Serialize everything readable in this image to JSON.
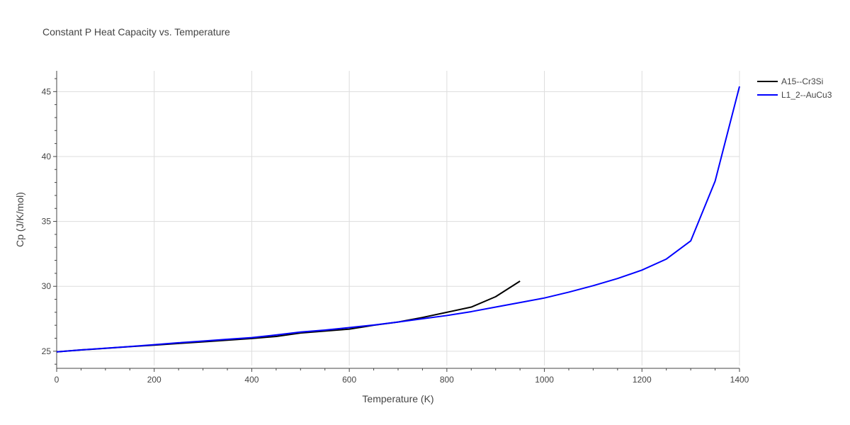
{
  "chart_data": {
    "type": "line",
    "title": "Constant P Heat Capacity vs. Temperature",
    "xlabel": "Temperature (K)",
    "ylabel": "Cp (J/K/mol)",
    "xlim": [
      0,
      1400
    ],
    "ylim": [
      23.9,
      46.6
    ],
    "xticks": [
      0,
      200,
      400,
      600,
      800,
      1000,
      1200,
      1400
    ],
    "yticks": [
      25,
      30,
      35,
      40,
      45
    ],
    "grid": true,
    "legend_position": "top-right",
    "series": [
      {
        "name": "A15--Cr3Si",
        "color": "#000000",
        "x": [
          0,
          50,
          100,
          150,
          200,
          250,
          300,
          350,
          400,
          450,
          500,
          550,
          600,
          650,
          700,
          750,
          800,
          850,
          900,
          950
        ],
        "y": [
          24.95,
          25.1,
          25.22,
          25.35,
          25.47,
          25.6,
          25.72,
          25.85,
          25.98,
          26.14,
          26.4,
          26.55,
          26.7,
          27.0,
          27.25,
          27.6,
          28.0,
          28.4,
          29.2,
          30.4
        ]
      },
      {
        "name": "L1_2--AuCu3",
        "color": "#0000ff",
        "x": [
          0,
          50,
          100,
          150,
          200,
          250,
          300,
          350,
          400,
          450,
          500,
          550,
          600,
          650,
          700,
          750,
          800,
          850,
          900,
          950,
          1000,
          1050,
          1100,
          1150,
          1200,
          1250,
          1300,
          1350,
          1400
        ],
        "y": [
          24.95,
          25.1,
          25.23,
          25.36,
          25.5,
          25.65,
          25.78,
          25.92,
          26.05,
          26.25,
          26.48,
          26.63,
          26.82,
          27.02,
          27.25,
          27.5,
          27.75,
          28.05,
          28.4,
          28.75,
          29.1,
          29.55,
          30.05,
          30.6,
          31.25,
          32.1,
          33.5,
          38.1,
          45.4
        ]
      }
    ]
  }
}
